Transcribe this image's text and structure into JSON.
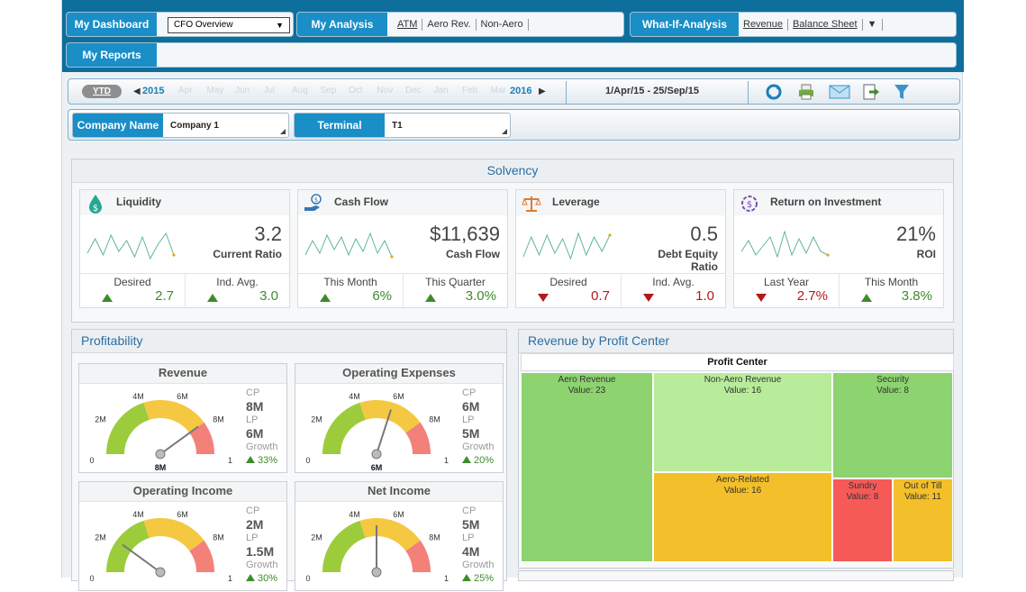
{
  "nav": {
    "dashboard_label": "My Dashboard",
    "dashboard_select": "CFO Overview",
    "analysis_label": "My Analysis",
    "analysis_links": [
      "ATM",
      "Aero Rev.",
      "Non-Aero"
    ],
    "whatif_label": "What-If-Analysis",
    "whatif_links": [
      "Revenue",
      "Balance Sheet"
    ],
    "whatif_more": "▼",
    "reports_label": "My Reports"
  },
  "timebar": {
    "ytd": "YTD",
    "year_start": "2015",
    "year_end": "2016",
    "months": [
      "Apr",
      "May",
      "Jun",
      "Jul",
      "Aug",
      "Sep",
      "Oct",
      "Nov",
      "Dec",
      "Jan",
      "Feb",
      "Mar"
    ],
    "date_range": "1/Apr/15 - 25/Sep/15",
    "tools": [
      "refresh-icon",
      "print-icon",
      "email-icon",
      "export-icon",
      "filter-icon"
    ]
  },
  "filters": {
    "company_label": "Company Name",
    "company_value": "Company 1",
    "terminal_label": "Terminal",
    "terminal_value": "T1"
  },
  "solvency": {
    "title": "Solvency",
    "cards": [
      {
        "title": "Liquidity",
        "icon": "dollar-drop-icon",
        "value": "3.2",
        "sub": "Current Ratio",
        "spark": [
          28,
          12,
          30,
          8,
          26,
          14,
          32,
          10,
          34,
          18,
          6,
          30
        ],
        "kpis": [
          {
            "label": "Desired",
            "value": "2.7",
            "dir": "up"
          },
          {
            "label": "Ind. Avg.",
            "value": "3.0",
            "dir": "up"
          }
        ]
      },
      {
        "title": "Cash Flow",
        "icon": "cash-hand-icon",
        "value": "$11,639",
        "sub": "Cash Flow",
        "spark": [
          30,
          14,
          28,
          8,
          24,
          10,
          30,
          12,
          26,
          6,
          28,
          14,
          32
        ],
        "kpis": [
          {
            "label": "This Month",
            "value": "6%",
            "dir": "up"
          },
          {
            "label": "This Quarter",
            "value": "3.0%",
            "dir": "up"
          }
        ]
      },
      {
        "title": "Leverage",
        "icon": "scales-icon",
        "value": "0.5",
        "sub": "Debt Equity Ratio",
        "spark": [
          32,
          10,
          30,
          8,
          28,
          12,
          34,
          6,
          30,
          10,
          26,
          8
        ],
        "kpis": [
          {
            "label": "Desired",
            "value": "0.7",
            "dir": "down"
          },
          {
            "label": "Ind. Avg.",
            "value": "1.0",
            "dir": "down"
          }
        ]
      },
      {
        "title": "Return on Investment",
        "icon": "roi-icon",
        "value": "21%",
        "sub": "ROI",
        "spark": [
          26,
          14,
          30,
          20,
          10,
          32,
          4,
          30,
          12,
          28,
          10,
          26,
          30
        ],
        "kpis": [
          {
            "label": "Last Year",
            "value": "2.7%",
            "dir": "down"
          },
          {
            "label": "This Month",
            "value": "3.8%",
            "dir": "up"
          }
        ]
      }
    ]
  },
  "profitability": {
    "title": "Profitability",
    "scale_labels": [
      "0",
      "2M",
      "4M",
      "6M",
      "8M",
      "10"
    ],
    "gauges": [
      {
        "title": "Revenue",
        "cp_label": "CP",
        "cp": "8M",
        "lp_label": "LP",
        "lp": "6M",
        "growth_label": "Growth",
        "growth": "33%",
        "needle": 8,
        "readout": "8M"
      },
      {
        "title": "Operating Expenses",
        "cp_label": "CP",
        "cp": "6M",
        "lp_label": "LP",
        "lp": "5M",
        "growth_label": "Growth",
        "growth": "20%",
        "needle": 6,
        "readout": "6M"
      },
      {
        "title": "Operating Income",
        "cp_label": "CP",
        "cp": "2M",
        "lp_label": "LP",
        "lp": "1.5M",
        "growth_label": "Growth",
        "growth": "30%",
        "needle": 2,
        "readout": ""
      },
      {
        "title": "Net Income",
        "cp_label": "CP",
        "cp": "5M",
        "lp_label": "LP",
        "lp": "4M",
        "growth_label": "Growth",
        "growth": "25%",
        "needle": 5,
        "readout": ""
      }
    ]
  },
  "revenue_pc": {
    "title": "Revenue by Profit Center",
    "header": "Profit Center",
    "tiles": [
      {
        "name": "Aero Revenue",
        "value": "Value: 23",
        "color": "#8dd36f"
      },
      {
        "name": "Non-Aero Revenue",
        "value": "Value: 16",
        "color": "#b8ec9a"
      },
      {
        "name": "Security",
        "value": "Value: 8",
        "color": "#8dd36f"
      },
      {
        "name": "Aero-Related",
        "value": "Value: 16",
        "color": "#f3bf2a"
      },
      {
        "name": "Sundry",
        "value": "Value: 8",
        "color": "#f65a57"
      },
      {
        "name": "Out of Till",
        "value": "Value: 11",
        "color": "#f3bf2a"
      }
    ]
  },
  "colors": {
    "accent": "#1a8ec7",
    "header": "#0e6e9c",
    "green": "#3e8b2c",
    "red": "#b41919"
  }
}
